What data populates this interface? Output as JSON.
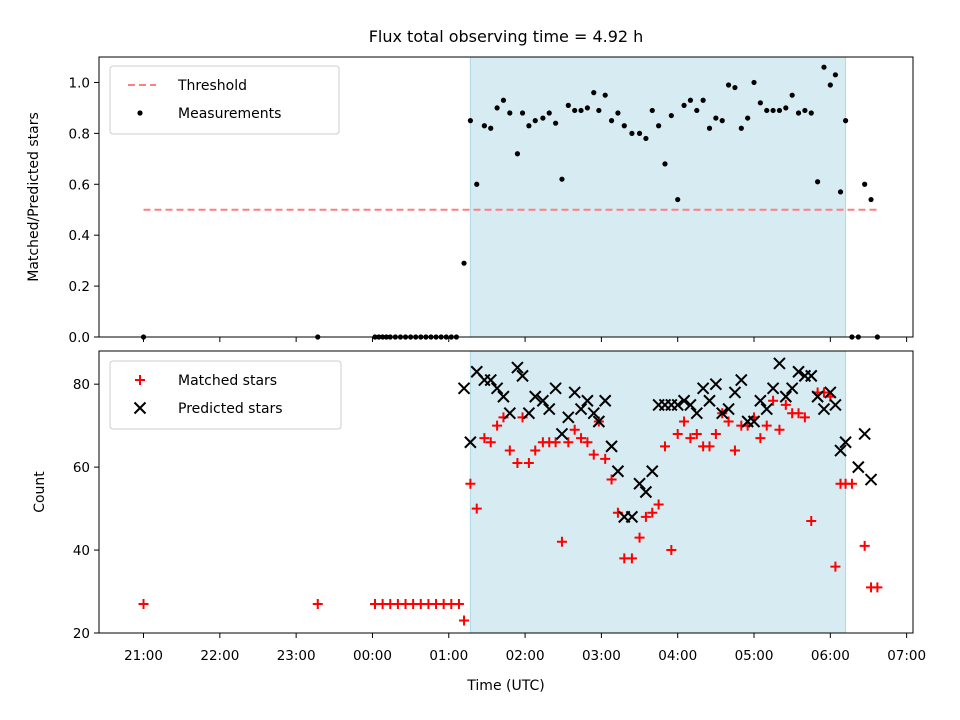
{
  "title": "Flux total observing time = 4.92 h",
  "shaded_interval": {
    "start": "01:17",
    "end": "06:12",
    "color": "#add8e6"
  },
  "chart_data": [
    {
      "type": "scatter",
      "ylabel": "Matched/Predicted stars",
      "ylim": [
        0,
        1.1
      ],
      "yticks": [
        0.0,
        0.2,
        0.4,
        0.6,
        0.8,
        1.0
      ],
      "ytick_labels": [
        "0.0",
        "0.2",
        "0.4",
        "0.6",
        "0.8",
        "1.0"
      ],
      "legend": {
        "location": "upper-left",
        "entries": [
          "Threshold",
          "Measurements"
        ]
      },
      "threshold": {
        "name": "Threshold",
        "value": 0.5,
        "x_start": "21:00",
        "x_end": "06:37",
        "color": "#ff7f7f",
        "style": "dashed"
      },
      "series": [
        {
          "name": "Measurements",
          "color": "#000000",
          "marker": "dot",
          "points": [
            [
              "21:00",
              0.0
            ],
            [
              "23:17",
              0.0
            ],
            [
              "00:02",
              0.0
            ],
            [
              "00:05",
              0.0
            ],
            [
              "00:08",
              0.0
            ],
            [
              "00:11",
              0.0
            ],
            [
              "00:14",
              0.0
            ],
            [
              "00:18",
              0.0
            ],
            [
              "00:22",
              0.0
            ],
            [
              "00:26",
              0.0
            ],
            [
              "00:30",
              0.0
            ],
            [
              "00:34",
              0.0
            ],
            [
              "00:38",
              0.0
            ],
            [
              "00:42",
              0.0
            ],
            [
              "00:46",
              0.0
            ],
            [
              "00:50",
              0.0
            ],
            [
              "00:54",
              0.0
            ],
            [
              "00:58",
              0.0
            ],
            [
              "01:02",
              0.0
            ],
            [
              "01:06",
              0.0
            ],
            [
              "01:12",
              0.29
            ],
            [
              "01:17",
              0.85
            ],
            [
              "01:22",
              0.6
            ],
            [
              "01:28",
              0.83
            ],
            [
              "01:33",
              0.82
            ],
            [
              "01:38",
              0.9
            ],
            [
              "01:43",
              0.93
            ],
            [
              "01:48",
              0.88
            ],
            [
              "01:54",
              0.72
            ],
            [
              "01:58",
              0.88
            ],
            [
              "02:03",
              0.83
            ],
            [
              "02:08",
              0.85
            ],
            [
              "02:14",
              0.86
            ],
            [
              "02:19",
              0.88
            ],
            [
              "02:24",
              0.84
            ],
            [
              "02:29",
              0.62
            ],
            [
              "02:34",
              0.91
            ],
            [
              "02:39",
              0.89
            ],
            [
              "02:44",
              0.89
            ],
            [
              "02:49",
              0.9
            ],
            [
              "02:54",
              0.96
            ],
            [
              "02:58",
              0.89
            ],
            [
              "03:03",
              0.95
            ],
            [
              "03:08",
              0.85
            ],
            [
              "03:13",
              0.88
            ],
            [
              "03:18",
              0.83
            ],
            [
              "03:24",
              0.8
            ],
            [
              "03:30",
              0.8
            ],
            [
              "03:35",
              0.78
            ],
            [
              "03:40",
              0.89
            ],
            [
              "03:45",
              0.83
            ],
            [
              "03:50",
              0.68
            ],
            [
              "03:55",
              0.87
            ],
            [
              "04:00",
              0.54
            ],
            [
              "04:05",
              0.91
            ],
            [
              "04:10",
              0.93
            ],
            [
              "04:15",
              0.89
            ],
            [
              "04:20",
              0.93
            ],
            [
              "04:25",
              0.82
            ],
            [
              "04:30",
              0.86
            ],
            [
              "04:35",
              0.85
            ],
            [
              "04:40",
              0.99
            ],
            [
              "04:45",
              0.98
            ],
            [
              "04:50",
              0.82
            ],
            [
              "04:55",
              0.86
            ],
            [
              "05:00",
              1.0
            ],
            [
              "05:05",
              0.92
            ],
            [
              "05:10",
              0.89
            ],
            [
              "05:15",
              0.89
            ],
            [
              "05:20",
              0.89
            ],
            [
              "05:25",
              0.9
            ],
            [
              "05:30",
              0.95
            ],
            [
              "05:35",
              0.88
            ],
            [
              "05:40",
              0.89
            ],
            [
              "05:45",
              0.88
            ],
            [
              "05:50",
              0.61
            ],
            [
              "05:55",
              1.06
            ],
            [
              "06:00",
              0.99
            ],
            [
              "06:04",
              1.03
            ],
            [
              "06:08",
              0.57
            ],
            [
              "06:12",
              0.85
            ],
            [
              "06:17",
              0.0
            ],
            [
              "06:22",
              0.0
            ],
            [
              "06:27",
              0.6
            ],
            [
              "06:32",
              0.54
            ],
            [
              "06:37",
              0.0
            ]
          ]
        }
      ]
    },
    {
      "type": "scatter",
      "xlabel": "Time (UTC)",
      "ylabel": "Count",
      "ylim": [
        20,
        88
      ],
      "yticks": [
        20,
        40,
        60,
        80
      ],
      "ytick_labels": [
        "20",
        "40",
        "60",
        "80"
      ],
      "xlim": [
        "20:25",
        "07:05"
      ],
      "xticks": [
        "21:00",
        "22:00",
        "23:00",
        "00:00",
        "01:00",
        "02:00",
        "03:00",
        "04:00",
        "05:00",
        "06:00",
        "07:00"
      ],
      "legend": {
        "location": "upper-left",
        "entries": [
          "Matched stars",
          "Predicted stars"
        ]
      },
      "series": [
        {
          "name": "Matched stars",
          "color": "#ff0000",
          "marker": "plus",
          "points": [
            [
              "21:00",
              27
            ],
            [
              "23:17",
              27
            ],
            [
              "00:02",
              27
            ],
            [
              "00:08",
              27
            ],
            [
              "00:14",
              27
            ],
            [
              "00:20",
              27
            ],
            [
              "00:26",
              27
            ],
            [
              "00:32",
              27
            ],
            [
              "00:38",
              27
            ],
            [
              "00:44",
              27
            ],
            [
              "00:50",
              27
            ],
            [
              "00:56",
              27
            ],
            [
              "01:02",
              27
            ],
            [
              "01:08",
              27
            ],
            [
              "01:12",
              23
            ],
            [
              "01:17",
              56
            ],
            [
              "01:22",
              50
            ],
            [
              "01:28",
              67
            ],
            [
              "01:33",
              66
            ],
            [
              "01:38",
              70
            ],
            [
              "01:43",
              72
            ],
            [
              "01:48",
              64
            ],
            [
              "01:54",
              61
            ],
            [
              "01:58",
              72
            ],
            [
              "02:03",
              61
            ],
            [
              "02:08",
              64
            ],
            [
              "02:14",
              66
            ],
            [
              "02:19",
              66
            ],
            [
              "02:24",
              66
            ],
            [
              "02:29",
              42
            ],
            [
              "02:34",
              66
            ],
            [
              "02:39",
              69
            ],
            [
              "02:44",
              67
            ],
            [
              "02:49",
              66
            ],
            [
              "02:54",
              63
            ],
            [
              "02:58",
              71
            ],
            [
              "03:03",
              62
            ],
            [
              "03:08",
              57
            ],
            [
              "03:13",
              49
            ],
            [
              "03:18",
              38
            ],
            [
              "03:24",
              38
            ],
            [
              "03:30",
              43
            ],
            [
              "03:35",
              48
            ],
            [
              "03:40",
              49
            ],
            [
              "03:45",
              51
            ],
            [
              "03:50",
              65
            ],
            [
              "03:55",
              40
            ],
            [
              "04:00",
              68
            ],
            [
              "04:05",
              71
            ],
            [
              "04:10",
              67
            ],
            [
              "04:15",
              68
            ],
            [
              "04:20",
              65
            ],
            [
              "04:25",
              65
            ],
            [
              "04:30",
              68
            ],
            [
              "04:35",
              73
            ],
            [
              "04:40",
              71
            ],
            [
              "04:45",
              64
            ],
            [
              "04:50",
              70
            ],
            [
              "04:55",
              70
            ],
            [
              "05:00",
              72
            ],
            [
              "05:05",
              67
            ],
            [
              "05:10",
              70
            ],
            [
              "05:15",
              76
            ],
            [
              "05:20",
              69
            ],
            [
              "05:25",
              75
            ],
            [
              "05:30",
              73
            ],
            [
              "05:35",
              73
            ],
            [
              "05:40",
              72
            ],
            [
              "05:45",
              47
            ],
            [
              "05:50",
              78
            ],
            [
              "05:55",
              78
            ],
            [
              "06:00",
              77
            ],
            [
              "06:04",
              36
            ],
            [
              "06:08",
              56
            ],
            [
              "06:12",
              56
            ],
            [
              "06:17",
              56
            ],
            [
              "06:27",
              41
            ],
            [
              "06:32",
              31
            ],
            [
              "06:37",
              31
            ]
          ]
        },
        {
          "name": "Predicted stars",
          "color": "#000000",
          "marker": "x",
          "points": [
            [
              "01:12",
              79
            ],
            [
              "01:17",
              66
            ],
            [
              "01:22",
              83
            ],
            [
              "01:28",
              81
            ],
            [
              "01:33",
              81
            ],
            [
              "01:38",
              79
            ],
            [
              "01:43",
              77
            ],
            [
              "01:48",
              73
            ],
            [
              "01:54",
              84
            ],
            [
              "01:58",
              82
            ],
            [
              "02:03",
              73
            ],
            [
              "02:08",
              77
            ],
            [
              "02:14",
              76
            ],
            [
              "02:19",
              74
            ],
            [
              "02:24",
              79
            ],
            [
              "02:29",
              68
            ],
            [
              "02:34",
              72
            ],
            [
              "02:39",
              78
            ],
            [
              "02:44",
              74
            ],
            [
              "02:49",
              76
            ],
            [
              "02:54",
              73
            ],
            [
              "02:58",
              71
            ],
            [
              "03:03",
              76
            ],
            [
              "03:08",
              65
            ],
            [
              "03:13",
              59
            ],
            [
              "03:18",
              48
            ],
            [
              "03:24",
              48
            ],
            [
              "03:30",
              56
            ],
            [
              "03:35",
              54
            ],
            [
              "03:40",
              59
            ],
            [
              "03:45",
              75
            ],
            [
              "03:50",
              75
            ],
            [
              "03:55",
              75
            ],
            [
              "04:00",
              75
            ],
            [
              "04:05",
              76
            ],
            [
              "04:10",
              75
            ],
            [
              "04:15",
              73
            ],
            [
              "04:20",
              79
            ],
            [
              "04:25",
              76
            ],
            [
              "04:30",
              80
            ],
            [
              "04:35",
              73
            ],
            [
              "04:40",
              74
            ],
            [
              "04:45",
              78
            ],
            [
              "04:50",
              81
            ],
            [
              "04:55",
              71
            ],
            [
              "05:00",
              71
            ],
            [
              "05:05",
              76
            ],
            [
              "05:10",
              74
            ],
            [
              "05:15",
              79
            ],
            [
              "05:20",
              85
            ],
            [
              "05:25",
              77
            ],
            [
              "05:30",
              79
            ],
            [
              "05:35",
              83
            ],
            [
              "05:40",
              82
            ],
            [
              "05:45",
              82
            ],
            [
              "05:50",
              77
            ],
            [
              "05:55",
              74
            ],
            [
              "06:00",
              78
            ],
            [
              "06:04",
              75
            ],
            [
              "06:08",
              64
            ],
            [
              "06:12",
              66
            ],
            [
              "06:22",
              60
            ],
            [
              "06:27",
              68
            ],
            [
              "06:32",
              57
            ]
          ]
        }
      ]
    }
  ]
}
